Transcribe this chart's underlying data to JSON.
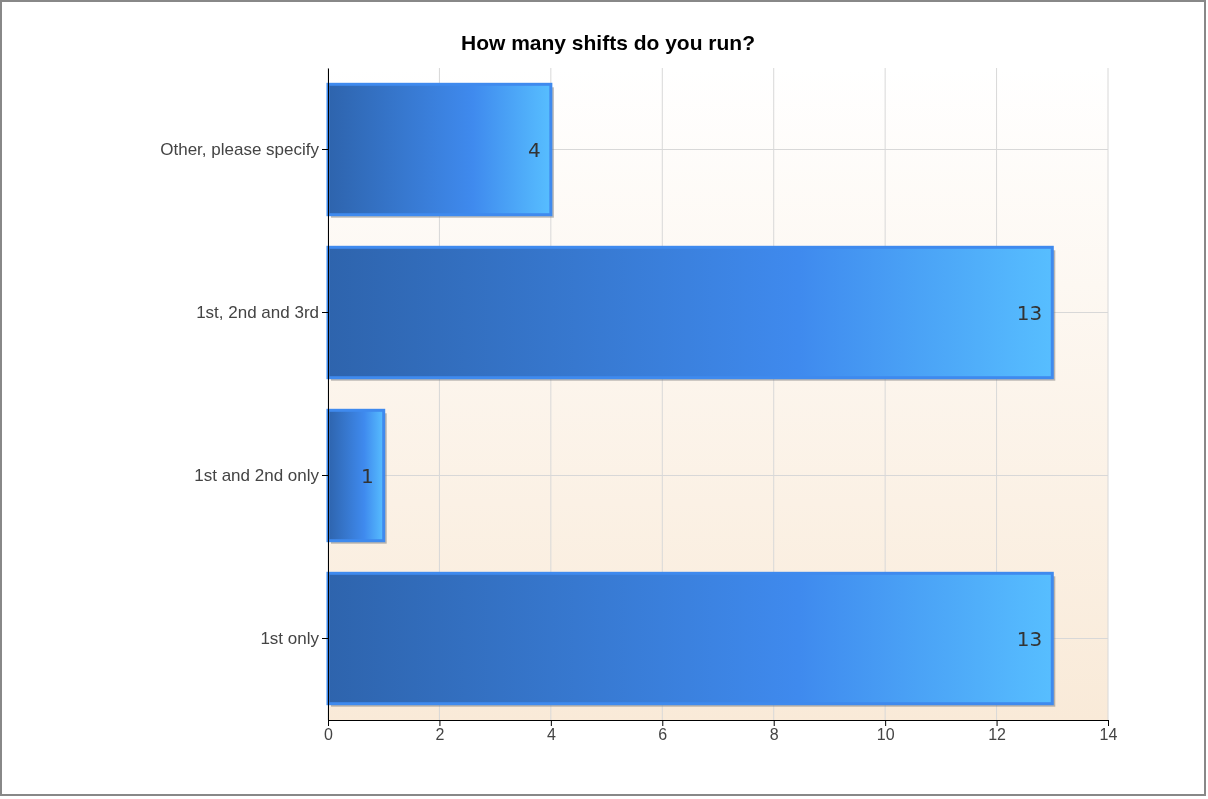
{
  "chart_data": {
    "type": "bar",
    "orientation": "horizontal",
    "title": "How many shifts do you run?",
    "categories": [
      "Other, please specify",
      "1st, 2nd and 3rd",
      "1st and 2nd only",
      "1st only"
    ],
    "values": [
      4,
      13,
      1,
      13
    ],
    "color": "#3f8aee",
    "xlim": [
      0,
      14
    ],
    "xticks": [
      0,
      2,
      4,
      6,
      8,
      10,
      12,
      14
    ],
    "grid": true,
    "data_labels": true
  }
}
